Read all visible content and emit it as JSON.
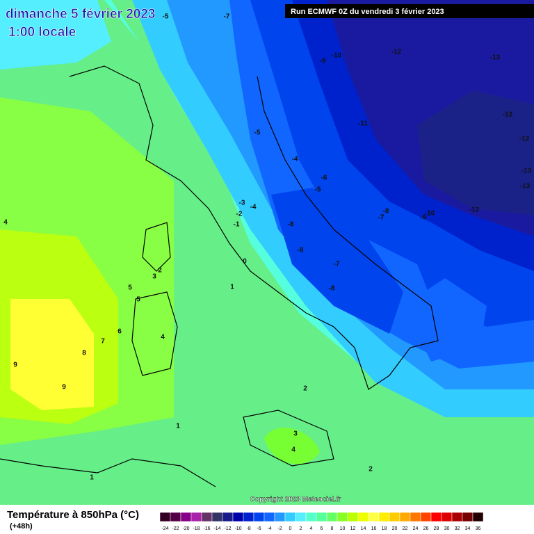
{
  "header": {
    "date": "dimanche 5 février 2023",
    "time": "1:00 locale",
    "run": "Run ECMWF 0Z du vendredi 3 février 2023"
  },
  "copyright": "Copyright 2023 Meteociel.fr",
  "legend": {
    "title": "Température à 850hPa (°C)",
    "lead": "(+48h)",
    "ticks": [
      -24,
      -22,
      -20,
      -18,
      -16,
      -14,
      -12,
      -10,
      -8,
      -6,
      -4,
      -2,
      0,
      2,
      4,
      6,
      8,
      10,
      12,
      14,
      16,
      18,
      20,
      22,
      24,
      26,
      28,
      30,
      32,
      34,
      36
    ],
    "colors": [
      "#330022",
      "#550044",
      "#880088",
      "#aa22aa",
      "#663366",
      "#333366",
      "#1a1a88",
      "#0000aa",
      "#0022cc",
      "#0044ee",
      "#1166ff",
      "#2299ff",
      "#33ccff",
      "#55eeff",
      "#55ffcc",
      "#55ff99",
      "#66ff66",
      "#88ff22",
      "#bbff00",
      "#eeff00",
      "#ffff44",
      "#ffee00",
      "#ffcc00",
      "#ffaa00",
      "#ff7700",
      "#ff4400",
      "#ff0000",
      "#dd0000",
      "#aa0000",
      "#770000",
      "#220000"
    ]
  },
  "contour_labels": [
    -5,
    -7,
    -9,
    -10,
    -12,
    -13,
    -11,
    -12,
    -12,
    -13,
    -13,
    -12,
    -10,
    -9,
    -8,
    -7,
    -6,
    -5,
    -4,
    -5,
    -3,
    -4,
    -2,
    -1,
    -8,
    -8,
    -7,
    -8,
    0,
    1,
    2,
    3,
    5,
    5,
    6,
    7,
    8,
    9,
    9,
    4,
    4,
    2,
    1,
    3,
    4,
    2,
    1
  ]
}
